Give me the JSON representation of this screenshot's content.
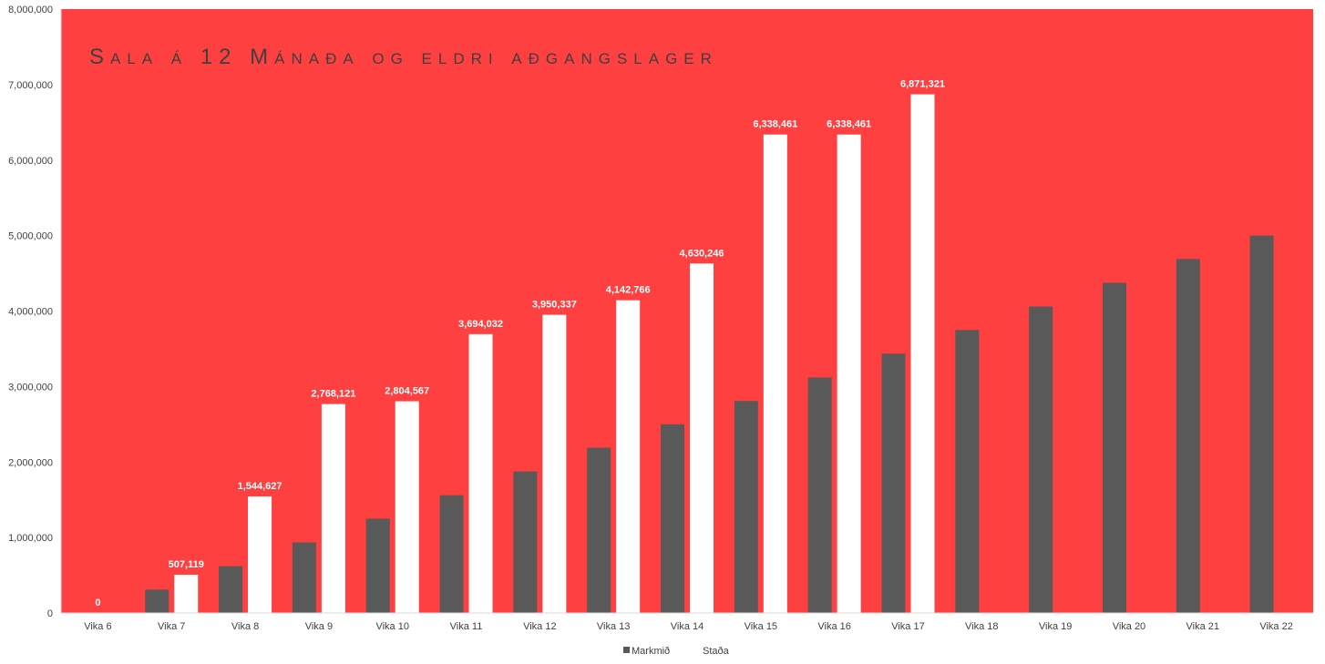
{
  "chart_data": {
    "type": "bar",
    "title": "Sala á 12 Mánaða og eldri  aðgangslager",
    "categories": [
      "Vika 6",
      "Vika 7",
      "Vika 8",
      "Vika 9",
      "Vika 10",
      "Vika 11",
      "Vika 12",
      "Vika 13",
      "Vika 14",
      "Vika 15",
      "Vika 16",
      "Vika 17",
      "Vika 18",
      "Vika 19",
      "Vika 20",
      "Vika 21",
      "Vika 22"
    ],
    "series": [
      {
        "name": "Markmið",
        "color": "#595959",
        "values": [
          0,
          310000,
          620000,
          935000,
          1250000,
          1560000,
          1875000,
          2190000,
          2500000,
          2810000,
          3120000,
          3435000,
          3750000,
          4060000,
          4375000,
          4690000,
          5000000
        ]
      },
      {
        "name": "Staða",
        "color": "#ffffff",
        "values": [
          0,
          507119,
          1544627,
          2768121,
          2804567,
          3694032,
          3950337,
          4142766,
          4630246,
          6338461,
          6338461,
          6871321,
          null,
          null,
          null,
          null,
          null
        ],
        "labels": [
          "0",
          "507,119",
          "1,544,627",
          "2,768,121",
          "2,804,567",
          "3,694,032",
          "3,950,337",
          "4,142,766",
          "4,630,246",
          "6,338,461",
          "6,338,461",
          "6,871,321",
          "",
          "",
          "",
          "",
          ""
        ]
      }
    ],
    "ylim": [
      0,
      8000000
    ],
    "yticks": [
      0,
      1000000,
      2000000,
      3000000,
      4000000,
      5000000,
      6000000,
      7000000,
      8000000
    ],
    "ytick_labels": [
      "0",
      "1,000,000",
      "2,000,000",
      "3,000,000",
      "4,000,000",
      "5,000,000",
      "6,000,000",
      "7,000,000",
      "8,000,000"
    ],
    "plot_background": "#ff4040",
    "grid": false,
    "legend_position": "bottom"
  }
}
